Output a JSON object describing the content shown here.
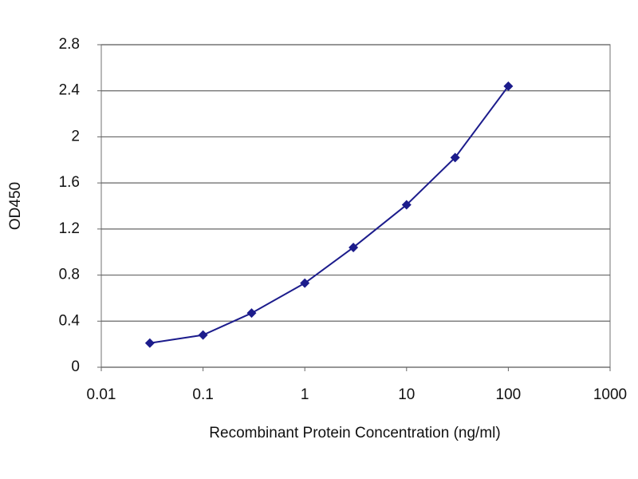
{
  "chart_data": {
    "type": "line",
    "xlabel": "Recombinant Protein Concentration (ng/ml)",
    "ylabel": "OD450",
    "x": [
      0.03,
      0.1,
      0.3,
      1,
      3,
      10,
      30,
      100
    ],
    "values": [
      0.21,
      0.28,
      0.47,
      0.73,
      1.04,
      1.41,
      1.82,
      2.44
    ],
    "color": "#1c1c8c",
    "xscale": "log",
    "xlim": [
      0.01,
      1000
    ],
    "xticks": [
      0.01,
      0.1,
      1,
      10,
      100,
      1000
    ],
    "ylim": [
      0,
      2.8
    ],
    "yticks": [
      0,
      0.4,
      0.8,
      1.2,
      1.6,
      2,
      2.4,
      2.8
    ],
    "grid": true
  }
}
